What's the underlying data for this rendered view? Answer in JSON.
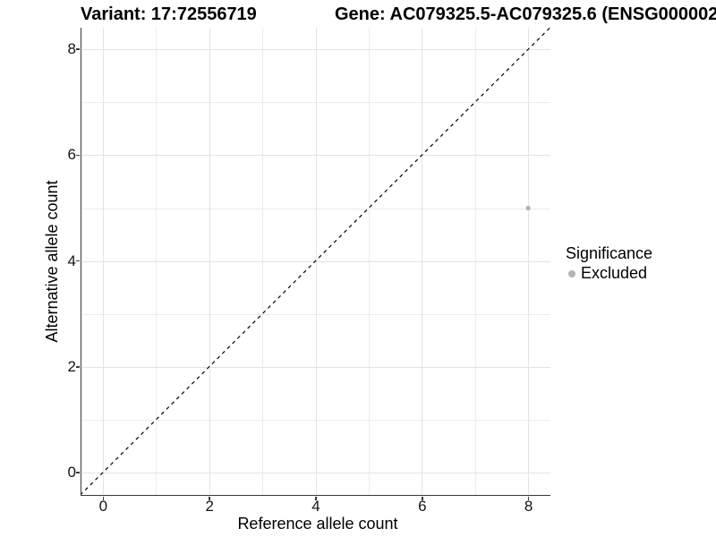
{
  "chart_data": {
    "type": "scatter",
    "titles": {
      "variant": "Variant: 17:72556719",
      "gene": "Gene: AC079325.5-AC079325.6 (ENSG000002"
    },
    "xlabel": "Reference allele count",
    "ylabel": "Alternative allele count",
    "xlim": [
      -0.43,
      8.41
    ],
    "ylim": [
      -0.44,
      8.41
    ],
    "x_ticks": {
      "values": [
        0,
        2,
        4,
        6,
        8
      ],
      "labels": [
        "0",
        "2",
        "4",
        "6",
        "8"
      ]
    },
    "y_ticks": {
      "values": [
        0,
        2,
        4,
        6,
        8
      ],
      "labels": [
        "0",
        "2",
        "4",
        "6",
        "8"
      ]
    },
    "x_gridlines_minor": [
      1,
      3,
      5,
      7
    ],
    "y_gridlines_minor": [
      1,
      3,
      5,
      7
    ],
    "grid": true,
    "reference_line": {
      "type": "identity y=x",
      "style": "dashed",
      "color": "#000000"
    },
    "series": [
      {
        "name": "Excluded",
        "color": "#b3b3b3",
        "points": [
          [
            8,
            5
          ]
        ]
      }
    ],
    "legend": {
      "title": "Significance",
      "position": "right",
      "items": [
        {
          "label": "Excluded",
          "color": "#b3b3b3"
        }
      ]
    }
  }
}
